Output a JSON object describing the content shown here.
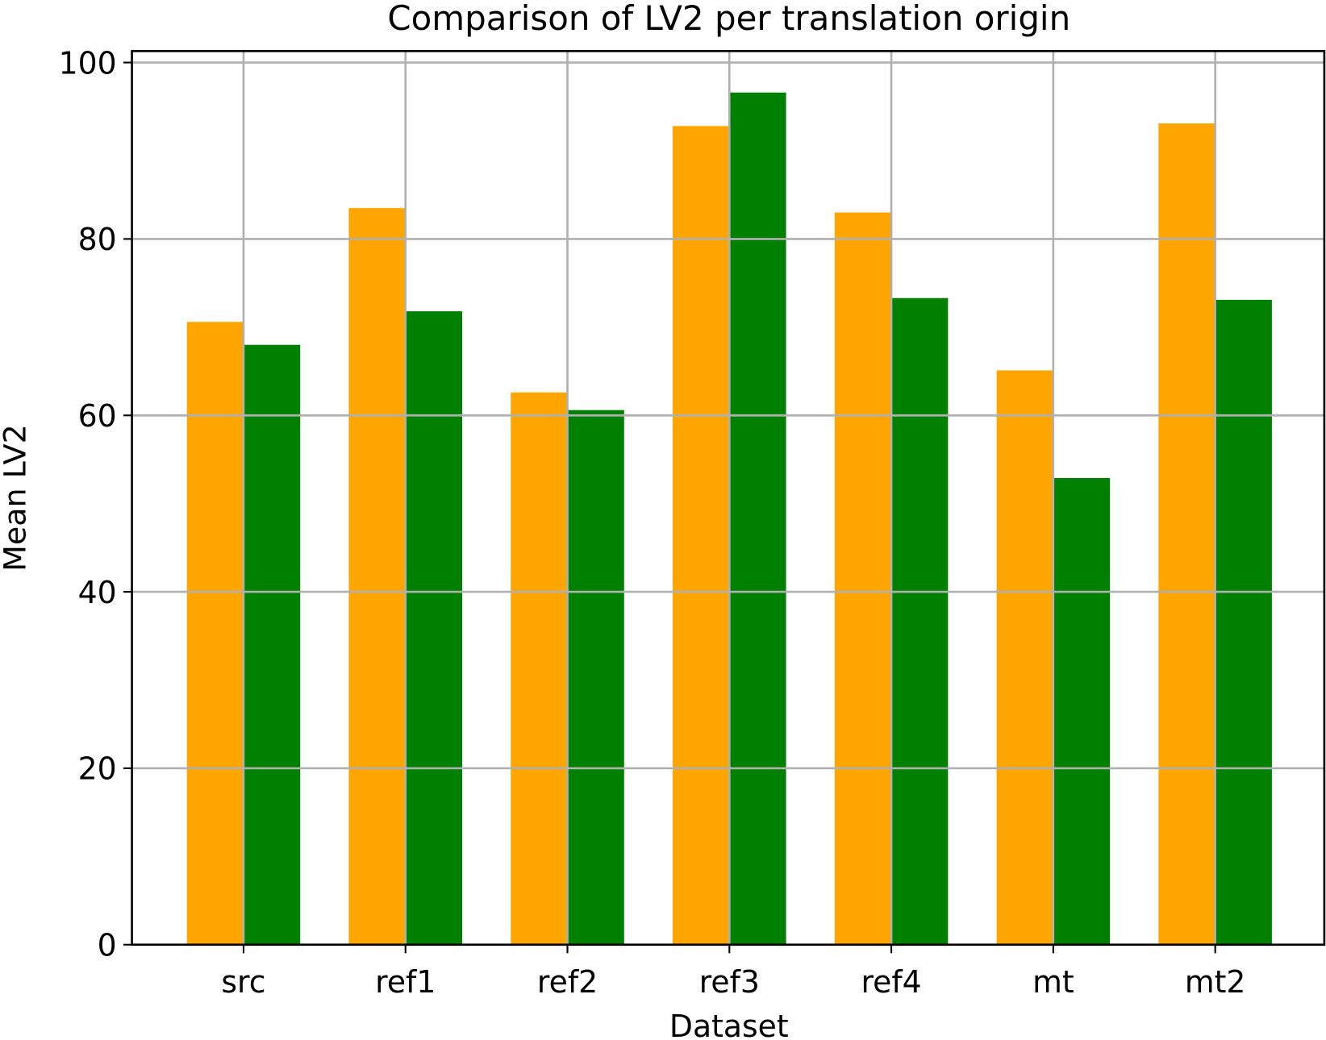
{
  "chart_data": {
    "type": "bar",
    "title": "Comparison of LV2 per translation origin",
    "x_label": "Dataset",
    "y_label": "Mean LV2",
    "categories": [
      "src",
      "ref1",
      "ref2",
      "ref3",
      "ref4",
      "mt",
      "mt2"
    ],
    "series": [
      {
        "color": "#ffa500",
        "values": [
          70.6,
          83.5,
          62.6,
          92.8,
          83.0,
          65.1,
          93.1
        ]
      },
      {
        "color": "#008000",
        "values": [
          68.0,
          71.8,
          60.6,
          96.6,
          73.3,
          52.9,
          73.1
        ]
      }
    ],
    "ylim": [
      0,
      101.3
    ],
    "yticks": [
      0,
      20,
      40,
      60,
      80,
      100
    ],
    "grid": true
  }
}
